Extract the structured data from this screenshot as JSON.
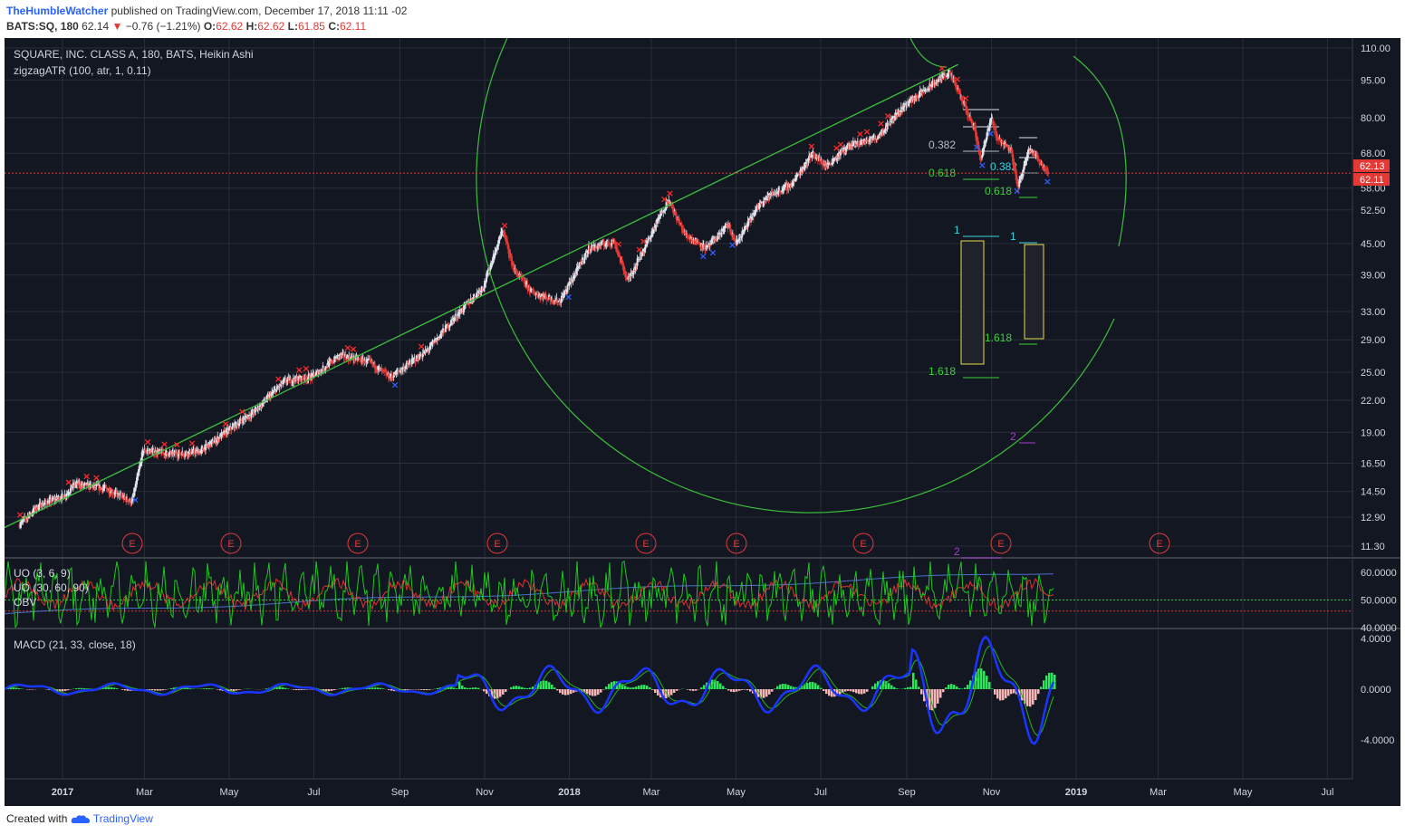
{
  "header": {
    "author": "TheHumbleWatcher",
    "published": "published on TradingView.com, December 17, 2018 11:11 -02",
    "symbol": "BATS:SQ, 180",
    "last": "62.14",
    "change": "−0.76 (−1.21%)",
    "o_label": "O:",
    "o": "62.62",
    "h_label": "H:",
    "h": "62.62",
    "l_label": "L:",
    "l": "61.85",
    "c_label": "C:",
    "c": "62.11"
  },
  "footer": {
    "created_with": "Created with",
    "brand": "TradingView"
  },
  "colors": {
    "background": "#131722",
    "grid": "#2a2e39",
    "up": "#e0e3eb",
    "down": "#e53935",
    "trend": "#3cbf3c",
    "fib_green": "#39d139",
    "fib_cyan": "#38d4e0",
    "purple": "#a040c8",
    "uo_fast": "#1ec81e",
    "uo_slow": "#e03030",
    "obv": "#4a6fd0",
    "macd": "#1a35ff",
    "signal": "#26b326"
  },
  "chart_data": [
    {
      "type": "line",
      "title": "SQUARE, INC. CLASS A, 180, BATS, Heikin Ashi",
      "indicator": "zigzagATR (100, atr, 1, 0.11)",
      "price_style": "heikin ashi candles",
      "scale": "log",
      "x_ticks": [
        "2017",
        "Mar",
        "May",
        "Jul",
        "Sep",
        "Nov",
        "2018",
        "Mar",
        "May",
        "Jul",
        "Sep",
        "Nov",
        "2019",
        "Mar",
        "May",
        "Jul"
      ],
      "y_ticks": [
        "110.00",
        "95.00",
        "80.00",
        "68.00",
        "62.13",
        "58.00",
        "52.50",
        "45.00",
        "39.00",
        "33.00",
        "29.00",
        "25.00",
        "22.00",
        "19.00",
        "16.50",
        "14.50",
        "12.90",
        "11.30"
      ],
      "ylim": [
        10.4,
        118
      ],
      "price_labels": {
        "last": "62.13",
        "close": "62.11"
      },
      "series": [
        {
          "x": [
            "2016-12-01",
            "2016-12-15",
            "2017-01-02",
            "2017-01-10",
            "2017-02-01",
            "2017-02-20",
            "2017-02-28",
            "2017-03-20",
            "2017-04-10",
            "2017-05-01",
            "2017-05-20",
            "2017-06-10",
            "2017-06-30",
            "2017-07-20",
            "2017-08-10",
            "2017-08-25",
            "2017-09-20",
            "2017-10-10",
            "2017-10-31",
            "2017-11-14",
            "2017-11-22",
            "2017-12-05",
            "2017-12-25",
            "2018-01-15",
            "2018-02-02",
            "2018-02-12",
            "2018-03-01",
            "2018-03-13",
            "2018-03-25",
            "2018-04-10",
            "2018-04-25",
            "2018-05-01",
            "2018-05-20",
            "2018-06-10",
            "2018-06-25",
            "2018-07-05",
            "2018-07-20",
            "2018-08-10",
            "2018-08-31",
            "2018-09-15",
            "2018-10-01",
            "2018-10-05",
            "2018-10-20",
            "2018-10-24",
            "2018-11-01",
            "2018-11-05",
            "2018-11-15",
            "2018-11-20",
            "2018-11-28",
            "2018-12-12"
          ],
          "values": [
            12.5,
            13.6,
            14.2,
            15.0,
            14.7,
            13.8,
            17.5,
            17.2,
            17.4,
            19.2,
            21.0,
            24.0,
            24.5,
            27.0,
            26.2,
            24.4,
            27.5,
            32.0,
            37.0,
            48.0,
            40.0,
            36.0,
            34.5,
            44.0,
            45.5,
            38.0,
            47.0,
            55.0,
            47.0,
            44.0,
            49.0,
            45.0,
            55.0,
            59.0,
            68.0,
            64.0,
            70.0,
            73.0,
            85.0,
            91.0,
            98.5,
            94.0,
            76.0,
            66.0,
            80.0,
            73.0,
            69.0,
            58.0,
            70.0,
            62.1
          ]
        }
      ],
      "annotations": [
        "0.382",
        "0.618",
        "0.382",
        "0.618",
        "1",
        "1",
        "1.618",
        "1.618",
        "2",
        "2"
      ],
      "zigzag_highs": [
        "2016-12-01",
        "2017-01-05",
        "2017-01-18",
        "2017-01-25",
        "2017-03-03",
        "2017-03-15",
        "2017-03-24",
        "2017-04-04",
        "2017-04-28",
        "2017-05-10",
        "2017-06-05",
        "2017-06-20",
        "2017-06-25",
        "2017-07-25",
        "2017-07-29",
        "2017-09-16",
        "2017-11-15",
        "2018-02-05",
        "2018-02-20",
        "2018-02-23",
        "2018-03-10",
        "2018-03-14",
        "2018-06-24",
        "2018-07-12",
        "2018-07-15",
        "2018-07-29",
        "2018-08-03",
        "2018-08-13",
        "2018-08-18",
        "2018-09-26",
        "2018-10-07",
        "2018-10-13"
      ],
      "zigzag_lows": [
        "2017-02-22",
        "2017-08-28",
        "2017-12-31",
        "2018-04-07",
        "2018-04-14",
        "2018-04-28",
        "2018-10-21",
        "2018-10-25",
        "2018-10-31",
        "2018-11-19",
        "2018-12-11"
      ],
      "earnings_markers": [
        "E",
        "E",
        "E",
        "E",
        "E",
        "E",
        "E",
        "E",
        "E"
      ]
    },
    {
      "type": "line",
      "series": [
        {
          "name": "UO (3, 6, 9)"
        },
        {
          "name": "UO (30, 60, 90)"
        },
        {
          "name": "OBV"
        }
      ],
      "y_ticks": [
        "60.0000",
        "50.0000",
        "40.0000"
      ],
      "ylim": [
        39,
        66
      ]
    },
    {
      "type": "bar",
      "series": [
        {
          "name": "MACD (21, 33, close, 18)"
        }
      ],
      "y_ticks": [
        "4.0000",
        "0.0000",
        "-4.0000"
      ],
      "ylim": [
        -6.5,
        4.4
      ]
    }
  ]
}
